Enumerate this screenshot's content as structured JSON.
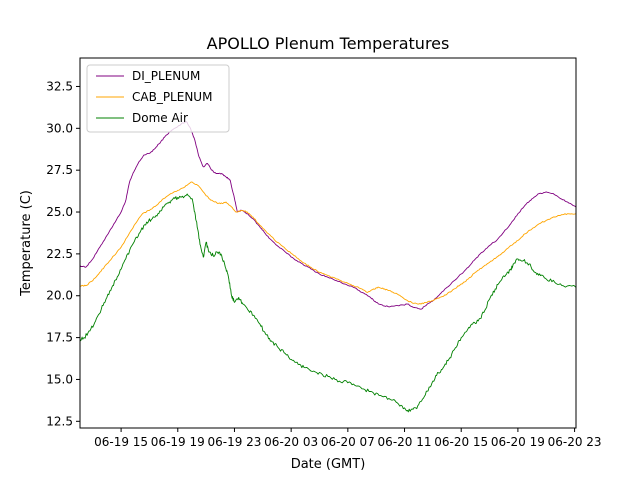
{
  "chart_data": {
    "type": "line",
    "title": "APOLLO Plenum Temperatures",
    "xlabel": "Date (GMT)",
    "ylabel": "Temperature (C)",
    "xlim": [
      12.1,
      47.1
    ],
    "ylim": [
      12.1,
      34.2
    ],
    "x_units": "hours since 06-19 00:00 GMT",
    "x_ticks": [
      {
        "value": 15,
        "label": "06-19 15"
      },
      {
        "value": 19,
        "label": "06-19 19"
      },
      {
        "value": 23,
        "label": "06-19 23"
      },
      {
        "value": 27,
        "label": "06-20 03"
      },
      {
        "value": 31,
        "label": "06-20 07"
      },
      {
        "value": 35,
        "label": "06-20 11"
      },
      {
        "value": 39,
        "label": "06-20 15"
      },
      {
        "value": 43,
        "label": "06-20 19"
      },
      {
        "value": 47,
        "label": "06-20 23"
      }
    ],
    "y_ticks": [
      {
        "value": 12.5,
        "label": "12.5"
      },
      {
        "value": 15.0,
        "label": "15.0"
      },
      {
        "value": 17.5,
        "label": "17.5"
      },
      {
        "value": 20.0,
        "label": "20.0"
      },
      {
        "value": 22.5,
        "label": "22.5"
      },
      {
        "value": 25.0,
        "label": "25.0"
      },
      {
        "value": 27.5,
        "label": "27.5"
      },
      {
        "value": 30.0,
        "label": "30.0"
      },
      {
        "value": 32.5,
        "label": "32.5"
      }
    ],
    "grid": false,
    "legend_position": "top-left",
    "series": [
      {
        "name": "DI_PLENUM",
        "color": "#800080",
        "points": [
          [
            12.1,
            21.8
          ],
          [
            12.5,
            21.7
          ],
          [
            13.0,
            22.2
          ],
          [
            13.5,
            22.9
          ],
          [
            14.0,
            23.6
          ],
          [
            14.5,
            24.3
          ],
          [
            15.0,
            25.0
          ],
          [
            15.3,
            25.6
          ],
          [
            15.6,
            26.8
          ],
          [
            15.9,
            27.4
          ],
          [
            16.2,
            27.9
          ],
          [
            16.6,
            28.4
          ],
          [
            17.0,
            28.5
          ],
          [
            17.4,
            28.8
          ],
          [
            17.8,
            29.2
          ],
          [
            18.2,
            29.6
          ],
          [
            18.6,
            29.9
          ],
          [
            19.0,
            30.1
          ],
          [
            19.3,
            30.3
          ],
          [
            19.6,
            30.4
          ],
          [
            19.9,
            30.0
          ],
          [
            20.2,
            29.3
          ],
          [
            20.5,
            28.3
          ],
          [
            20.8,
            27.7
          ],
          [
            21.1,
            27.9
          ],
          [
            21.4,
            27.5
          ],
          [
            21.7,
            27.3
          ],
          [
            22.1,
            27.3
          ],
          [
            22.4,
            27.1
          ],
          [
            22.7,
            26.9
          ],
          [
            23.0,
            25.8
          ],
          [
            23.2,
            25.0
          ],
          [
            23.5,
            25.1
          ],
          [
            23.9,
            24.9
          ],
          [
            24.3,
            24.6
          ],
          [
            24.7,
            24.2
          ],
          [
            25.1,
            23.8
          ],
          [
            25.5,
            23.4
          ],
          [
            26.0,
            23.0
          ],
          [
            26.6,
            22.6
          ],
          [
            27.2,
            22.2
          ],
          [
            27.8,
            21.9
          ],
          [
            28.4,
            21.6
          ],
          [
            29.0,
            21.3
          ],
          [
            29.6,
            21.1
          ],
          [
            30.2,
            20.9
          ],
          [
            30.8,
            20.7
          ],
          [
            31.4,
            20.5
          ],
          [
            32.0,
            20.2
          ],
          [
            32.6,
            19.9
          ],
          [
            33.0,
            19.6
          ],
          [
            33.5,
            19.4
          ],
          [
            34.0,
            19.35
          ],
          [
            34.6,
            19.4
          ],
          [
            35.2,
            19.5
          ],
          [
            35.7,
            19.3
          ],
          [
            36.2,
            19.2
          ],
          [
            36.6,
            19.5
          ],
          [
            37.0,
            19.7
          ],
          [
            37.5,
            20.1
          ],
          [
            38.0,
            20.5
          ],
          [
            38.5,
            20.9
          ],
          [
            39.0,
            21.3
          ],
          [
            39.5,
            21.7
          ],
          [
            40.0,
            22.2
          ],
          [
            40.5,
            22.6
          ],
          [
            41.0,
            23.0
          ],
          [
            41.5,
            23.3
          ],
          [
            42.0,
            23.8
          ],
          [
            42.5,
            24.3
          ],
          [
            43.0,
            24.9
          ],
          [
            43.5,
            25.4
          ],
          [
            44.0,
            25.8
          ],
          [
            44.5,
            26.1
          ],
          [
            45.0,
            26.2
          ],
          [
            45.5,
            26.1
          ],
          [
            46.0,
            25.8
          ],
          [
            46.5,
            25.6
          ],
          [
            47.1,
            25.3
          ]
        ]
      },
      {
        "name": "CAB_PLENUM",
        "color": "#ffa500",
        "points": [
          [
            12.1,
            20.6
          ],
          [
            12.5,
            20.6
          ],
          [
            13.0,
            20.9
          ],
          [
            13.5,
            21.4
          ],
          [
            14.0,
            21.9
          ],
          [
            14.5,
            22.4
          ],
          [
            15.0,
            22.9
          ],
          [
            15.5,
            23.6
          ],
          [
            16.0,
            24.3
          ],
          [
            16.5,
            24.9
          ],
          [
            17.0,
            25.1
          ],
          [
            17.5,
            25.4
          ],
          [
            18.0,
            25.8
          ],
          [
            18.5,
            26.1
          ],
          [
            19.0,
            26.3
          ],
          [
            19.5,
            26.5
          ],
          [
            20.0,
            26.8
          ],
          [
            20.4,
            26.6
          ],
          [
            20.8,
            26.2
          ],
          [
            21.2,
            25.8
          ],
          [
            21.6,
            25.6
          ],
          [
            22.0,
            25.5
          ],
          [
            22.4,
            25.6
          ],
          [
            22.8,
            25.3
          ],
          [
            23.1,
            25.0
          ],
          [
            23.5,
            25.1
          ],
          [
            23.9,
            25.0
          ],
          [
            24.3,
            24.7
          ],
          [
            24.8,
            24.2
          ],
          [
            25.4,
            23.7
          ],
          [
            26.0,
            23.2
          ],
          [
            26.6,
            22.8
          ],
          [
            27.2,
            22.4
          ],
          [
            27.8,
            22.0
          ],
          [
            28.4,
            21.7
          ],
          [
            29.0,
            21.4
          ],
          [
            29.6,
            21.2
          ],
          [
            30.2,
            21.0
          ],
          [
            30.8,
            20.8
          ],
          [
            31.4,
            20.6
          ],
          [
            32.0,
            20.4
          ],
          [
            32.4,
            20.2
          ],
          [
            32.8,
            20.4
          ],
          [
            33.2,
            20.5
          ],
          [
            33.6,
            20.4
          ],
          [
            34.0,
            20.3
          ],
          [
            34.5,
            20.1
          ],
          [
            35.0,
            19.8
          ],
          [
            35.5,
            19.6
          ],
          [
            36.0,
            19.5
          ],
          [
            36.5,
            19.6
          ],
          [
            37.0,
            19.7
          ],
          [
            37.5,
            19.9
          ],
          [
            38.0,
            20.1
          ],
          [
            38.5,
            20.4
          ],
          [
            39.0,
            20.7
          ],
          [
            39.5,
            21.0
          ],
          [
            40.0,
            21.4
          ],
          [
            40.5,
            21.7
          ],
          [
            41.0,
            22.0
          ],
          [
            41.5,
            22.3
          ],
          [
            42.0,
            22.6
          ],
          [
            42.5,
            23.0
          ],
          [
            43.0,
            23.3
          ],
          [
            43.5,
            23.7
          ],
          [
            44.0,
            24.0
          ],
          [
            44.5,
            24.3
          ],
          [
            45.0,
            24.5
          ],
          [
            45.5,
            24.7
          ],
          [
            46.0,
            24.8
          ],
          [
            46.5,
            24.9
          ],
          [
            47.1,
            24.9
          ]
        ]
      },
      {
        "name": "Dome Air",
        "color": "#008000",
        "points": [
          [
            12.1,
            17.4
          ],
          [
            12.4,
            17.5
          ],
          [
            12.8,
            17.9
          ],
          [
            13.2,
            18.5
          ],
          [
            13.6,
            19.2
          ],
          [
            14.0,
            19.9
          ],
          [
            14.4,
            20.6
          ],
          [
            14.8,
            21.2
          ],
          [
            15.2,
            22.0
          ],
          [
            15.6,
            22.7
          ],
          [
            16.0,
            23.4
          ],
          [
            16.4,
            23.9
          ],
          [
            16.8,
            24.4
          ],
          [
            17.2,
            24.6
          ],
          [
            17.6,
            24.9
          ],
          [
            18.0,
            25.3
          ],
          [
            18.4,
            25.6
          ],
          [
            18.8,
            25.8
          ],
          [
            19.2,
            25.9
          ],
          [
            19.6,
            26.0
          ],
          [
            20.0,
            25.8
          ],
          [
            20.2,
            25.0
          ],
          [
            20.4,
            24.0
          ],
          [
            20.6,
            23.0
          ],
          [
            20.8,
            22.3
          ],
          [
            21.0,
            23.2
          ],
          [
            21.2,
            22.6
          ],
          [
            21.5,
            22.4
          ],
          [
            21.8,
            22.6
          ],
          [
            22.1,
            22.4
          ],
          [
            22.4,
            21.6
          ],
          [
            22.6,
            21.0
          ],
          [
            22.8,
            20.0
          ],
          [
            23.0,
            19.6
          ],
          [
            23.3,
            19.9
          ],
          [
            23.6,
            19.5
          ],
          [
            24.0,
            19.1
          ],
          [
            24.4,
            18.8
          ],
          [
            24.8,
            18.3
          ],
          [
            25.2,
            17.7
          ],
          [
            25.6,
            17.3
          ],
          [
            26.0,
            17.0
          ],
          [
            26.5,
            16.6
          ],
          [
            27.0,
            16.2
          ],
          [
            27.5,
            15.9
          ],
          [
            28.0,
            15.7
          ],
          [
            28.6,
            15.5
          ],
          [
            29.2,
            15.3
          ],
          [
            29.8,
            15.1
          ],
          [
            30.4,
            14.9
          ],
          [
            31.0,
            14.8
          ],
          [
            31.6,
            14.6
          ],
          [
            32.2,
            14.4
          ],
          [
            32.8,
            14.2
          ],
          [
            33.4,
            14.0
          ],
          [
            34.0,
            13.8
          ],
          [
            34.5,
            13.6
          ],
          [
            35.0,
            13.3
          ],
          [
            35.4,
            13.1
          ],
          [
            35.8,
            13.3
          ],
          [
            36.2,
            13.7
          ],
          [
            36.6,
            14.3
          ],
          [
            37.0,
            14.9
          ],
          [
            37.4,
            15.4
          ],
          [
            37.8,
            15.8
          ],
          [
            38.2,
            16.3
          ],
          [
            38.6,
            16.9
          ],
          [
            39.0,
            17.5
          ],
          [
            39.4,
            17.9
          ],
          [
            39.8,
            18.3
          ],
          [
            40.2,
            18.5
          ],
          [
            40.6,
            19.0
          ],
          [
            41.0,
            19.8
          ],
          [
            41.4,
            20.4
          ],
          [
            41.8,
            20.9
          ],
          [
            42.2,
            21.3
          ],
          [
            42.5,
            21.6
          ],
          [
            42.7,
            21.9
          ],
          [
            43.0,
            22.2
          ],
          [
            43.4,
            22.1
          ],
          [
            43.8,
            21.9
          ],
          [
            44.2,
            21.4
          ],
          [
            44.6,
            21.2
          ],
          [
            45.0,
            21.0
          ],
          [
            45.6,
            20.8
          ],
          [
            46.2,
            20.6
          ],
          [
            47.1,
            20.5
          ]
        ]
      }
    ]
  }
}
